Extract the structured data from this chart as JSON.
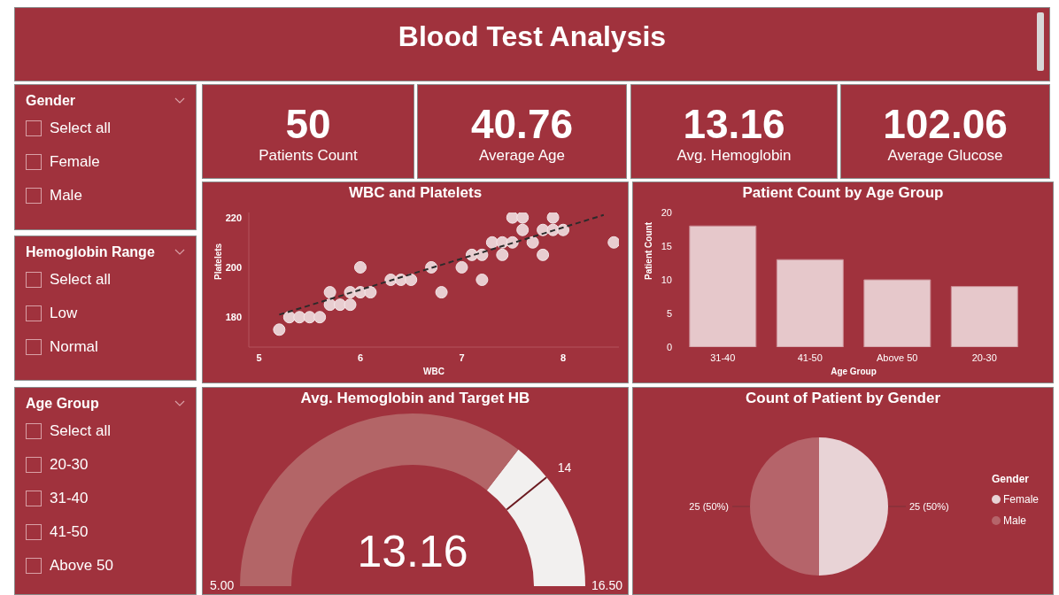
{
  "chart_data": [
    {
      "type": "other",
      "title": "Blood Test Analysis"
    },
    {
      "type": "other",
      "title": "Gender",
      "annotations": [
        "Select all",
        "Female",
        "Male"
      ]
    },
    {
      "type": "other",
      "title": "Hemoglobin Range",
      "annotations": [
        "Select all",
        "Low",
        "Normal"
      ]
    },
    {
      "type": "other",
      "title": "Age Group",
      "annotations": [
        "Select all",
        "20-30",
        "31-40",
        "41-50",
        "Above 50"
      ]
    },
    {
      "type": "other",
      "title": "Patients Count",
      "annotations": [
        "50"
      ]
    },
    {
      "type": "other",
      "title": "Average Age",
      "annotations": [
        "40.76"
      ]
    },
    {
      "type": "other",
      "title": "Avg. Hemoglobin",
      "annotations": [
        "13.16"
      ]
    },
    {
      "type": "other",
      "title": "Average Glucose",
      "annotations": [
        "102.06"
      ]
    },
    {
      "type": "scatter",
      "title": "WBC and Platelets",
      "xlabel": "WBC",
      "ylabel": "Platelets",
      "xlim": [
        4.9,
        8.55
      ],
      "xticks": [
        5,
        6,
        7,
        8
      ],
      "ylim": [
        168,
        222
      ],
      "yticks": [
        180,
        200,
        220
      ],
      "series": [
        {
          "type": "scatter",
          "marker": "circle",
          "color": "#e8cdd0",
          "x": [
            5.2,
            5.3,
            5.4,
            5.5,
            5.6,
            5.7,
            5.7,
            5.8,
            5.9,
            5.9,
            6.0,
            6.0,
            6.1,
            6.3,
            6.4,
            6.5,
            6.7,
            6.8,
            7.0,
            7.1,
            7.2,
            7.2,
            7.3,
            7.4,
            7.4,
            7.5,
            7.5,
            7.6,
            7.6,
            7.7,
            7.8,
            7.8,
            7.9,
            7.9,
            8.0,
            8.5
          ],
          "values": [
            175,
            180,
            180,
            180,
            180,
            190,
            185,
            185,
            185,
            190,
            200,
            190,
            190,
            195,
            195,
            195,
            200,
            190,
            200,
            205,
            205,
            195,
            210,
            210,
            205,
            220,
            210,
            220,
            215,
            210,
            215,
            205,
            220,
            215,
            215,
            210
          ]
        },
        {
          "type": "line",
          "color": "#2b2b2b",
          "line_style": "dashed",
          "x": [
            5.2,
            8.4
          ],
          "values": [
            181,
            221
          ]
        }
      ]
    },
    {
      "type": "bar",
      "title": "Patient Count by Age Group",
      "xlabel": "Age Group",
      "ylabel": "Patient Count",
      "categories": [
        "31-40",
        "41-50",
        "Above 50",
        "20-30"
      ],
      "values": [
        18,
        13,
        10,
        9
      ],
      "color": "#e6c8cb",
      "ylim": [
        0,
        20
      ],
      "yticks": [
        0,
        5,
        10,
        15,
        20
      ]
    },
    {
      "type": "other",
      "title": "Avg. Hemoglobin and Target HB",
      "values": [
        13.16
      ],
      "data_labels": true,
      "annotations": [
        "5.00",
        "16.50",
        "14"
      ]
    },
    {
      "type": "pie",
      "title": "Count of Patient by Gender",
      "categories": [
        "Female",
        "Male"
      ],
      "values": [
        25,
        25
      ],
      "colors": [
        "#e8d3d6",
        "#b5646a"
      ],
      "value_labels": [
        "25 (50%)",
        "25 (50%)"
      ],
      "legend": "right",
      "legend_title": "Gender"
    }
  ]
}
